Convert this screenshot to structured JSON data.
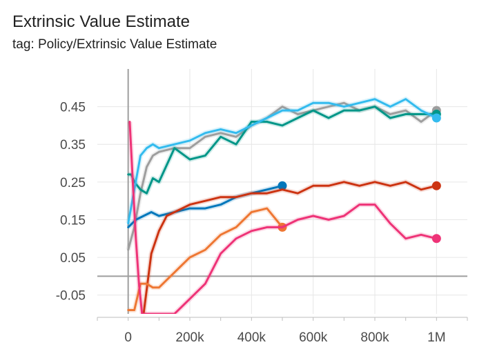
{
  "header": {
    "title": "Extrinsic Value Estimate",
    "subtitle": "tag: Policy/Extrinsic Value Estimate"
  },
  "chart_data": {
    "type": "line",
    "title": "Extrinsic Value Estimate",
    "subtitle": "tag: Policy/Extrinsic Value Estimate",
    "xlabel": "",
    "ylabel": "",
    "xlim": [
      -100000,
      1100000
    ],
    "ylim": [
      -0.1,
      0.55
    ],
    "x_ticks": [
      0,
      200000,
      400000,
      600000,
      800000,
      1000000
    ],
    "x_tick_labels": [
      "0",
      "200k",
      "400k",
      "600k",
      "800k",
      "1M"
    ],
    "y_ticks": [
      -0.05,
      0.05,
      0.15,
      0.25,
      0.35,
      0.45
    ],
    "y_tick_labels": [
      "-0.05",
      "0.05",
      "0.15",
      "0.25",
      "0.35",
      "0.45"
    ],
    "grid": true,
    "legend": "none",
    "series": [
      {
        "color": "#9e9e9e",
        "x": [
          0,
          20000,
          40000,
          60000,
          80000,
          100000,
          150000,
          200000,
          250000,
          300000,
          350000,
          400000,
          450000,
          500000,
          550000,
          600000,
          650000,
          700000,
          750000,
          800000,
          850000,
          900000,
          950000,
          1000000
        ],
        "y": [
          0.07,
          0.13,
          0.22,
          0.29,
          0.32,
          0.33,
          0.34,
          0.34,
          0.37,
          0.38,
          0.37,
          0.4,
          0.42,
          0.45,
          0.43,
          0.44,
          0.45,
          0.46,
          0.44,
          0.45,
          0.43,
          0.44,
          0.41,
          0.44
        ]
      },
      {
        "color": "#009688",
        "x": [
          0,
          10000,
          20000,
          40000,
          60000,
          80000,
          100000,
          150000,
          200000,
          250000,
          300000,
          350000,
          400000,
          450000,
          500000,
          550000,
          600000,
          650000,
          700000,
          750000,
          800000,
          850000,
          900000,
          950000,
          1000000
        ],
        "y": [
          0.27,
          0.27,
          0.25,
          0.23,
          0.22,
          0.26,
          0.25,
          0.34,
          0.31,
          0.32,
          0.37,
          0.35,
          0.41,
          0.41,
          0.4,
          0.42,
          0.44,
          0.42,
          0.44,
          0.44,
          0.45,
          0.42,
          0.43,
          0.43,
          0.43
        ]
      },
      {
        "color": "#33bbee",
        "x": [
          0,
          20000,
          40000,
          60000,
          80000,
          100000,
          150000,
          200000,
          250000,
          300000,
          350000,
          400000,
          450000,
          500000,
          550000,
          600000,
          650000,
          700000,
          750000,
          800000,
          850000,
          900000,
          950000,
          1000000
        ],
        "y": [
          0.14,
          0.23,
          0.32,
          0.34,
          0.35,
          0.34,
          0.35,
          0.36,
          0.38,
          0.39,
          0.38,
          0.4,
          0.42,
          0.44,
          0.44,
          0.46,
          0.46,
          0.45,
          0.46,
          0.47,
          0.45,
          0.47,
          0.44,
          0.42
        ]
      },
      {
        "color": "#0077bb",
        "x": [
          0,
          25000,
          50000,
          75000,
          100000,
          150000,
          200000,
          250000,
          300000,
          350000,
          400000,
          450000,
          500000
        ],
        "y": [
          0.13,
          0.15,
          0.16,
          0.17,
          0.16,
          0.17,
          0.18,
          0.18,
          0.19,
          0.21,
          0.22,
          0.23,
          0.24
        ]
      },
      {
        "color": "#cc3311",
        "x": [
          50000,
          75000,
          100000,
          125000,
          150000,
          200000,
          250000,
          300000,
          350000,
          400000,
          450000,
          500000,
          550000,
          600000,
          650000,
          700000,
          750000,
          800000,
          850000,
          900000,
          950000,
          1000000
        ],
        "y": [
          -0.1,
          0.06,
          0.12,
          0.16,
          0.17,
          0.19,
          0.2,
          0.21,
          0.21,
          0.22,
          0.22,
          0.23,
          0.22,
          0.24,
          0.24,
          0.25,
          0.24,
          0.25,
          0.24,
          0.25,
          0.23,
          0.24
        ]
      },
      {
        "color": "#ee7733",
        "x": [
          0,
          20000,
          40000,
          60000,
          80000,
          100000,
          125000,
          150000,
          175000,
          200000,
          250000,
          300000,
          350000,
          400000,
          450000,
          500000
        ],
        "y": [
          -0.09,
          -0.09,
          -0.02,
          -0.02,
          -0.03,
          -0.03,
          -0.01,
          0.01,
          0.03,
          0.05,
          0.07,
          0.11,
          0.13,
          0.17,
          0.18,
          0.13
        ]
      },
      {
        "color": "#ee3377",
        "x": [
          5000,
          15000,
          25000,
          35000,
          45000,
          60000,
          75000,
          100000,
          150000,
          200000,
          250000,
          300000,
          350000,
          400000,
          450000,
          500000,
          550000,
          600000,
          650000,
          700000,
          750000,
          800000,
          850000,
          900000,
          950000,
          1000000
        ],
        "y": [
          0.41,
          0.25,
          0.1,
          -0.02,
          -0.1,
          -0.1,
          -0.1,
          -0.1,
          -0.1,
          -0.06,
          -0.02,
          0.06,
          0.1,
          0.12,
          0.13,
          0.13,
          0.15,
          0.16,
          0.15,
          0.16,
          0.19,
          0.19,
          0.14,
          0.1,
          0.11,
          0.1
        ]
      }
    ]
  }
}
